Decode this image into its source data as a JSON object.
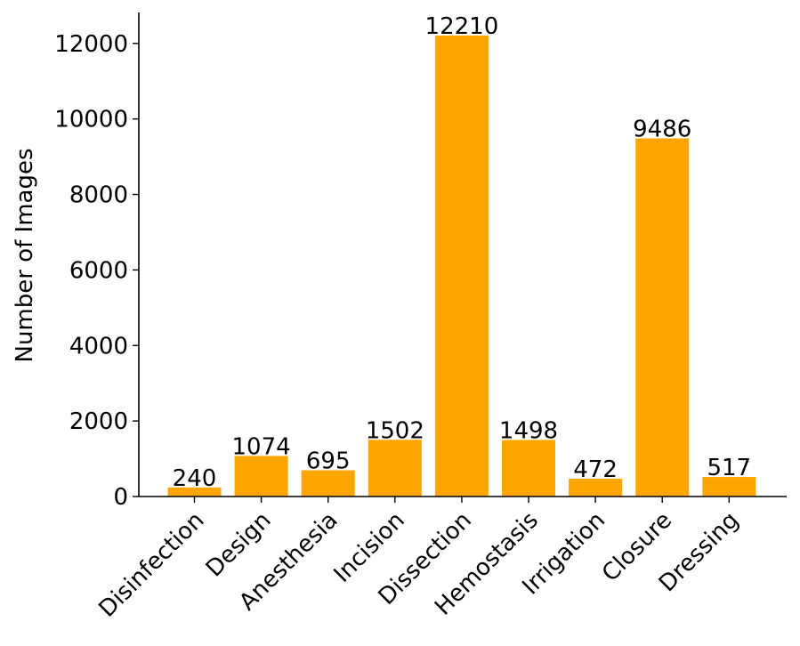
{
  "chart_data": {
    "type": "bar",
    "title": "",
    "xlabel": "",
    "ylabel": "Number of Images",
    "categories": [
      "Disinfection",
      "Design",
      "Anesthesia",
      "Incision",
      "Dissection",
      "Hemostasis",
      "Irrigation",
      "Closure",
      "Dressing"
    ],
    "values": [
      240,
      1074,
      695,
      1502,
      12210,
      1498,
      472,
      9486,
      517
    ],
    "ylim": [
      0,
      12820
    ],
    "yticks": [
      0,
      2000,
      4000,
      6000,
      8000,
      10000,
      12000
    ],
    "bar_color": "#FFA500",
    "grid": false,
    "legend": "none"
  }
}
